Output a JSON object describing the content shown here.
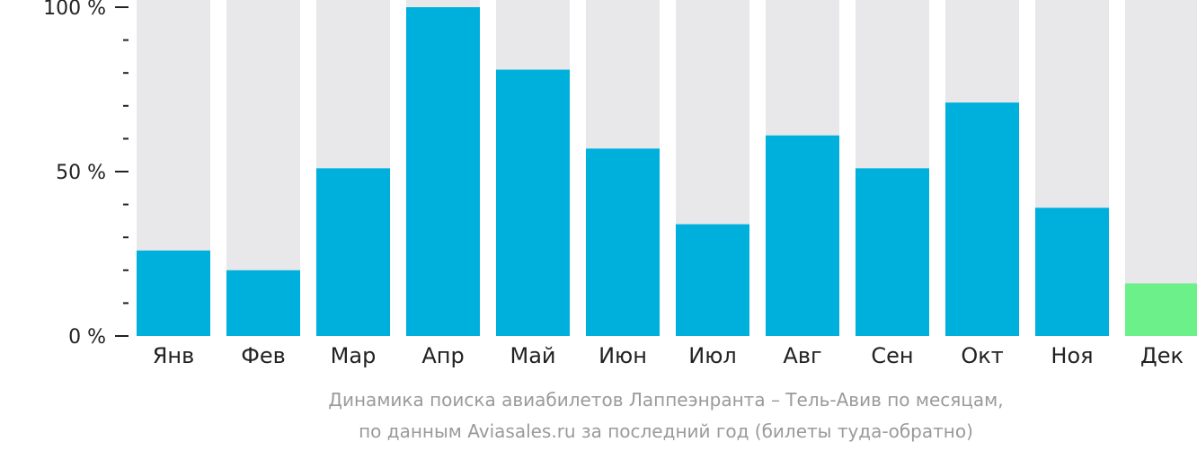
{
  "chart_data": {
    "type": "bar",
    "categories": [
      "Янв",
      "Фев",
      "Мар",
      "Апр",
      "Май",
      "Июн",
      "Июл",
      "Авг",
      "Сен",
      "Окт",
      "Ноя",
      "Дек"
    ],
    "values": [
      26,
      20,
      51,
      100,
      81,
      57,
      34,
      61,
      51,
      71,
      39,
      16
    ],
    "ylim": [
      0,
      100
    ],
    "y_ticks": [
      {
        "value": 100,
        "label": "100 %"
      },
      {
        "value": 50,
        "label": "50 %"
      },
      {
        "value": 0,
        "label": "0 %"
      }
    ],
    "minor_ticks": [
      10,
      20,
      30,
      40,
      60,
      70,
      80,
      90
    ],
    "highlight_index": 11,
    "colors": {
      "bar": "#00b0dc",
      "highlight": "#6cf08a",
      "background_bar": "#e8e8ea",
      "axis": "#222222"
    },
    "caption": [
      "Динамика поиска авиабилетов Лаппеэнранта – Тель-Авив по месяцам,",
      "по данным Aviasales.ru за последний год (билеты туда-обратно)"
    ]
  }
}
